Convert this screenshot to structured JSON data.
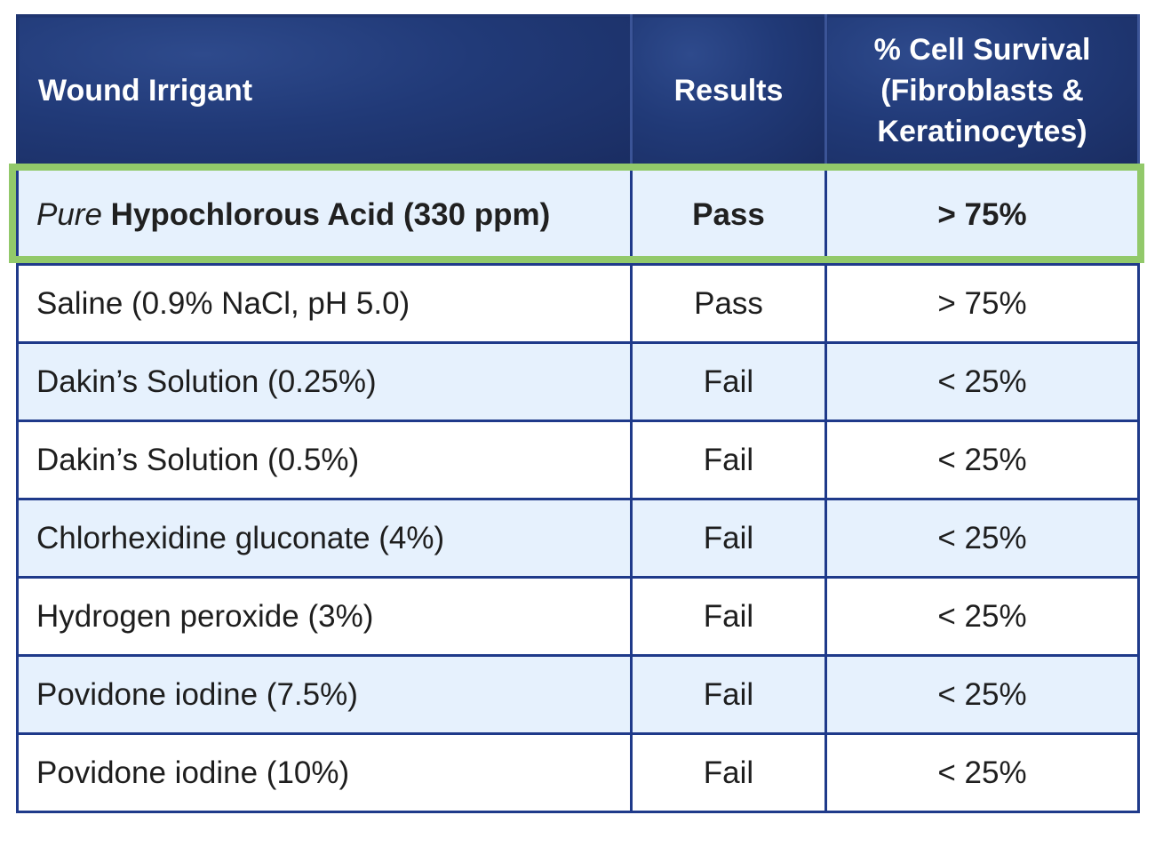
{
  "chart_data": {
    "type": "table",
    "columns": [
      "Wound Irrigant",
      "Results",
      "% Cell Survival (Fibroblasts & Keratinocytes)"
    ],
    "highlight_color": "#92c96a",
    "header_color": "#213a78",
    "rows": [
      {
        "irrigant_prefix": "Pure",
        "irrigant": "Hypochlorous Acid (330 ppm)",
        "result": "Pass",
        "survival": "> 75%",
        "highlighted": true
      },
      {
        "irrigant_prefix": "",
        "irrigant": "Saline (0.9% NaCl, pH 5.0)",
        "result": "Pass",
        "survival": "> 75%"
      },
      {
        "irrigant_prefix": "",
        "irrigant": "Dakin’s Solution (0.25%)",
        "result": "Fail",
        "survival": "< 25%"
      },
      {
        "irrigant_prefix": "",
        "irrigant": "Dakin’s Solution (0.5%)",
        "result": "Fail",
        "survival": "< 25%"
      },
      {
        "irrigant_prefix": "",
        "irrigant": "Chlorhexidine gluconate (4%)",
        "result": "Fail",
        "survival": "< 25%"
      },
      {
        "irrigant_prefix": "",
        "irrigant": "Hydrogen peroxide (3%)",
        "result": "Fail",
        "survival": "< 25%"
      },
      {
        "irrigant_prefix": "",
        "irrigant": "Povidone iodine (7.5%)",
        "result": "Fail",
        "survival": "< 25%"
      },
      {
        "irrigant_prefix": "",
        "irrigant": "Povidone iodine (10%)",
        "result": "Fail",
        "survival": "< 25%"
      }
    ]
  }
}
